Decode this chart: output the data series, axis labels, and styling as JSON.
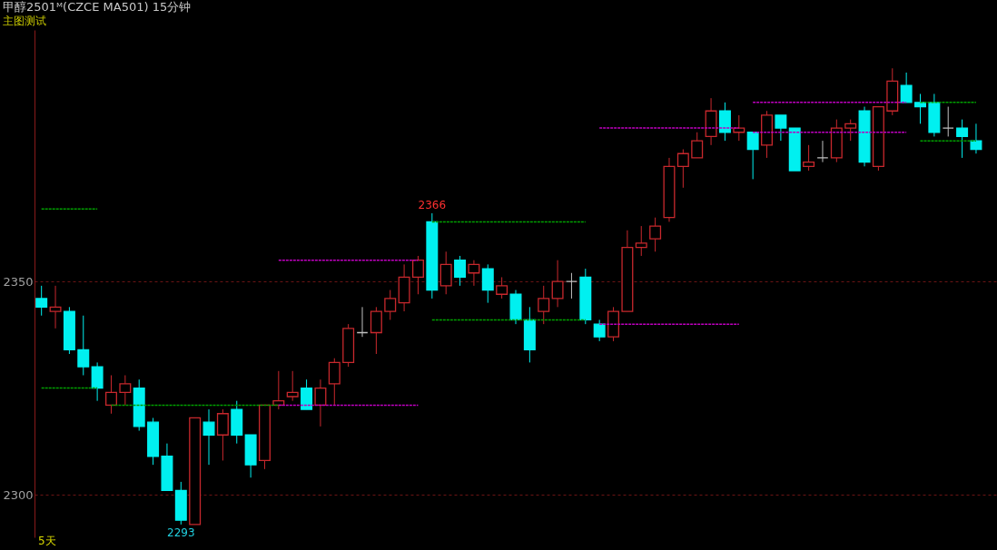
{
  "chart_data": {
    "type": "candlestick",
    "title": "甲醇2501ᴹ(CZCE MA501)  15分钟",
    "subtitle": "主图测试",
    "categories": [
      null,
      null,
      null,
      null,
      null,
      null,
      null,
      null,
      null,
      null,
      null,
      null,
      null,
      null,
      null,
      null,
      null,
      null,
      null,
      null,
      null,
      null,
      null,
      null,
      null,
      null,
      null,
      null,
      null,
      null,
      null,
      null,
      null,
      null,
      null,
      null,
      null,
      null,
      null,
      null,
      null,
      null,
      null,
      null,
      null,
      null,
      null,
      null,
      null,
      null,
      null,
      null,
      null,
      null,
      null,
      null,
      null,
      null,
      null,
      null,
      null,
      null,
      null,
      null,
      null,
      null,
      null,
      null
    ],
    "ohlc": [
      [
        2346,
        2349,
        2342,
        2344
      ],
      [
        2343,
        2349,
        2339,
        2344
      ],
      [
        2343,
        2344,
        2333,
        2334
      ],
      [
        2334,
        2342,
        2328,
        2330
      ],
      [
        2330,
        2331,
        2322,
        2325
      ],
      [
        2321,
        2328,
        2319,
        2324
      ],
      [
        2324,
        2328,
        2321,
        2326
      ],
      [
        2325,
        2327,
        2315,
        2316
      ],
      [
        2317,
        2318,
        2307,
        2309
      ],
      [
        2309,
        2312,
        2301,
        2301
      ],
      [
        2301,
        2303,
        2293,
        2294
      ],
      [
        2293,
        2318,
        2293,
        2318
      ],
      [
        2317,
        2320,
        2307,
        2314
      ],
      [
        2314,
        2320,
        2308,
        2319
      ],
      [
        2320,
        2322,
        2312,
        2314
      ],
      [
        2314,
        2314,
        2304,
        2307
      ],
      [
        2308,
        2321,
        2306,
        2321
      ],
      [
        2321,
        2329,
        2320,
        2322
      ],
      [
        2323,
        2329,
        2322,
        2324
      ],
      [
        2325,
        2327,
        2320,
        2320
      ],
      [
        2321,
        2327,
        2316,
        2325
      ],
      [
        2326,
        2332,
        2321,
        2331
      ],
      [
        2331,
        2340,
        2330,
        2339
      ],
      [
        2338,
        2344,
        2337,
        2338
      ],
      [
        2338,
        2344,
        2333,
        2343
      ],
      [
        2343,
        2348,
        2341,
        2346
      ],
      [
        2345,
        2354,
        2343,
        2351
      ],
      [
        2351,
        2356,
        2347,
        2355
      ],
      [
        2364,
        2366,
        2346,
        2348
      ],
      [
        2349,
        2357,
        2347,
        2354
      ],
      [
        2355,
        2356,
        2349,
        2351
      ],
      [
        2352,
        2355,
        2349,
        2354
      ],
      [
        2353,
        2354,
        2345,
        2348
      ],
      [
        2347,
        2351,
        2346,
        2349
      ],
      [
        2347,
        2348,
        2340,
        2341
      ],
      [
        2341,
        2344,
        2331,
        2334
      ],
      [
        2343,
        2349,
        2340,
        2346
      ],
      [
        2346,
        2355,
        2344,
        2350
      ],
      [
        2350,
        2352,
        2346,
        2350
      ],
      [
        2351,
        2353,
        2340,
        2341
      ],
      [
        2340,
        2341,
        2336,
        2337
      ],
      [
        2337,
        2344,
        2336,
        2343
      ],
      [
        2343,
        2362,
        2343,
        2358
      ],
      [
        2358,
        2363,
        2356,
        2359
      ],
      [
        2360,
        2365,
        2357,
        2363
      ],
      [
        2365,
        2379,
        2364,
        2377
      ],
      [
        2377,
        2381,
        2372,
        2380
      ],
      [
        2379,
        2385,
        2379,
        2383
      ],
      [
        2384,
        2393,
        2382,
        2390
      ],
      [
        2390,
        2392,
        2383,
        2385
      ],
      [
        2385,
        2389,
        2383,
        2386
      ],
      [
        2385,
        2385,
        2374,
        2381
      ],
      [
        2382,
        2390,
        2379,
        2389
      ],
      [
        2389,
        2389,
        2383,
        2386
      ],
      [
        2386,
        2386,
        2376,
        2376
      ],
      [
        2377,
        2382,
        2376,
        2378
      ],
      [
        2379,
        2383,
        2378,
        2379
      ],
      [
        2379,
        2388,
        2378,
        2386
      ],
      [
        2386,
        2388,
        2383,
        2387
      ],
      [
        2390,
        2391,
        2377,
        2378
      ],
      [
        2377,
        2391,
        2376,
        2391
      ],
      [
        2390,
        2400,
        2389,
        2397
      ],
      [
        2396,
        2399,
        2392,
        2392
      ],
      [
        2392,
        2394,
        2387,
        2391
      ],
      [
        2392,
        2394,
        2384,
        2385
      ],
      [
        2386,
        2391,
        2384,
        2386
      ],
      [
        2386,
        2388,
        2379,
        2384
      ],
      [
        2383,
        2387,
        2380,
        2381
      ]
    ],
    "colors": [
      "#00f0f0",
      "#c8282d",
      "#00f0f0",
      "#00f0f0",
      "#00f0f0",
      "#c8282d",
      "#c8282d",
      "#00f0f0",
      "#00f0f0",
      "#00f0f0",
      "#00f0f0",
      "#c8282d",
      "#00f0f0",
      "#c8282d",
      "#00f0f0",
      "#00f0f0",
      "#c8282d",
      "#c8282d",
      "#c8282d",
      "#00f0f0",
      "#c8282d",
      "#c8282d",
      "#c8282d",
      "#c0c0c0",
      "#c8282d",
      "#c8282d",
      "#c8282d",
      "#c8282d",
      "#00f0f0",
      "#c8282d",
      "#00f0f0",
      "#c8282d",
      "#00f0f0",
      "#c8282d",
      "#00f0f0",
      "#00f0f0",
      "#c8282d",
      "#c8282d",
      "#c0c0c0",
      "#00f0f0",
      "#00f0f0",
      "#c8282d",
      "#c8282d",
      "#c8282d",
      "#c8282d",
      "#c8282d",
      "#c8282d",
      "#c8282d",
      "#c8282d",
      "#00f0f0",
      "#c8282d",
      "#00f0f0",
      "#c8282d",
      "#00f0f0",
      "#00f0f0",
      "#c8282d",
      "#c0c0c0",
      "#c8282d",
      "#c8282d",
      "#00f0f0",
      "#c8282d",
      "#c8282d",
      "#00f0f0",
      "#00f0f0",
      "#00f0f0",
      "#c0c0c0",
      "#00f0f0",
      "#00f0f0"
    ],
    "series": [
      {
        "type": "line",
        "color": "#00a000",
        "values": [
          2367,
          2367,
          2367,
          2367,
          2367,
          null,
          null,
          null,
          null,
          null,
          null,
          null,
          null,
          null,
          null,
          null,
          null,
          null,
          null,
          null,
          null,
          null,
          null,
          null,
          null,
          null,
          null,
          null,
          2364,
          2364,
          2364,
          2364,
          2364,
          2364,
          2364,
          2364,
          2364,
          2364,
          2364,
          2364,
          null,
          null,
          null,
          null,
          null,
          null,
          null,
          null,
          null,
          null,
          null,
          null,
          null,
          null,
          null,
          null,
          null,
          null,
          null,
          null,
          null,
          null,
          null,
          2392,
          2392,
          2392,
          2392,
          2392
        ]
      },
      {
        "type": "line",
        "color": "#00a000",
        "values": [
          2325,
          2325,
          2325,
          2325,
          2325,
          null,
          null,
          null,
          null,
          null,
          null,
          null,
          null,
          null,
          null,
          null,
          null,
          null,
          null,
          null,
          null,
          null,
          null,
          null,
          null,
          null,
          null,
          null,
          2341,
          2341,
          2341,
          2341,
          2341,
          2341,
          2341,
          2341,
          2341,
          2341,
          2341,
          2341,
          null,
          null,
          null,
          null,
          null,
          null,
          null,
          null,
          null,
          null,
          null,
          null,
          null,
          null,
          null,
          null,
          null,
          null,
          null,
          null,
          null,
          null,
          null,
          2383,
          2383,
          2383,
          2383,
          2383
        ]
      },
      {
        "type": "line",
        "color": "#00a000",
        "values": [
          null,
          null,
          null,
          null,
          null,
          2321,
          2321,
          2321,
          2321,
          2321,
          2321,
          2321,
          2321,
          2321,
          2321,
          2321,
          2321,
          2321,
          null,
          null,
          null,
          null,
          null,
          null,
          null,
          null,
          null,
          null,
          null,
          null,
          null,
          null,
          null,
          null,
          null,
          null,
          null,
          null,
          null,
          null,
          null,
          null,
          null,
          null,
          null,
          null,
          null,
          null,
          null,
          null,
          null,
          null,
          null,
          null,
          null,
          null,
          null,
          null,
          null,
          null,
          null,
          null,
          null,
          null,
          null,
          null,
          null,
          null
        ]
      },
      {
        "type": "line",
        "color": "#c000c0",
        "values": [
          null,
          null,
          null,
          null,
          null,
          null,
          null,
          null,
          null,
          null,
          null,
          null,
          null,
          null,
          null,
          null,
          null,
          2355,
          2355,
          2355,
          2355,
          2355,
          2355,
          2355,
          2355,
          2355,
          2355,
          2355,
          null,
          null,
          null,
          null,
          null,
          null,
          null,
          null,
          null,
          null,
          null,
          null,
          2386,
          2386,
          2386,
          2386,
          2386,
          2386,
          2386,
          2386,
          2386,
          2386,
          2386,
          null,
          null,
          null,
          null,
          null,
          null,
          null,
          null,
          null,
          null,
          null,
          null,
          null,
          null,
          null,
          null,
          null
        ]
      },
      {
        "type": "line",
        "color": "#c000c0",
        "values": [
          null,
          null,
          null,
          null,
          null,
          null,
          null,
          null,
          null,
          null,
          null,
          null,
          null,
          null,
          null,
          null,
          null,
          2321,
          2321,
          2321,
          2321,
          2321,
          2321,
          2321,
          2321,
          2321,
          2321,
          2321,
          null,
          null,
          null,
          null,
          null,
          null,
          null,
          null,
          null,
          null,
          null,
          null,
          2340,
          2340,
          2340,
          2340,
          2340,
          2340,
          2340,
          2340,
          2340,
          2340,
          2340,
          null,
          null,
          null,
          null,
          null,
          null,
          null,
          null,
          null,
          null,
          null,
          null,
          null,
          null,
          null,
          null,
          null
        ]
      },
      {
        "type": "line",
        "color": "#c000c0",
        "values": [
          null,
          null,
          null,
          null,
          null,
          null,
          null,
          null,
          null,
          null,
          null,
          null,
          null,
          null,
          null,
          null,
          null,
          null,
          null,
          null,
          null,
          null,
          null,
          null,
          null,
          null,
          null,
          null,
          null,
          null,
          null,
          null,
          null,
          null,
          null,
          null,
          null,
          null,
          null,
          null,
          null,
          null,
          null,
          null,
          null,
          null,
          null,
          null,
          null,
          null,
          null,
          2392,
          2392,
          2392,
          2392,
          2392,
          2392,
          2392,
          2392,
          2392,
          2392,
          2392,
          2392,
          null,
          null,
          null,
          null,
          null
        ]
      },
      {
        "type": "line",
        "color": "#c000c0",
        "values": [
          null,
          null,
          null,
          null,
          null,
          null,
          null,
          null,
          null,
          null,
          null,
          null,
          null,
          null,
          null,
          null,
          null,
          null,
          null,
          null,
          null,
          null,
          null,
          null,
          null,
          null,
          null,
          null,
          null,
          null,
          null,
          null,
          null,
          null,
          null,
          null,
          null,
          null,
          null,
          null,
          null,
          null,
          null,
          null,
          null,
          null,
          null,
          null,
          null,
          null,
          null,
          2385,
          2385,
          2385,
          2385,
          2385,
          2385,
          2385,
          2385,
          2385,
          2385,
          2385,
          2385,
          null,
          null,
          null,
          null,
          null
        ]
      }
    ],
    "line_style": "dotted",
    "ylim": [
      2290,
      2409
    ],
    "yticks": [
      2350,
      2300
    ],
    "grid": "y",
    "annotations": [
      {
        "text": "2366",
        "y": 2366
      },
      {
        "text": "2293",
        "y": 2293
      },
      "5天"
    ]
  }
}
